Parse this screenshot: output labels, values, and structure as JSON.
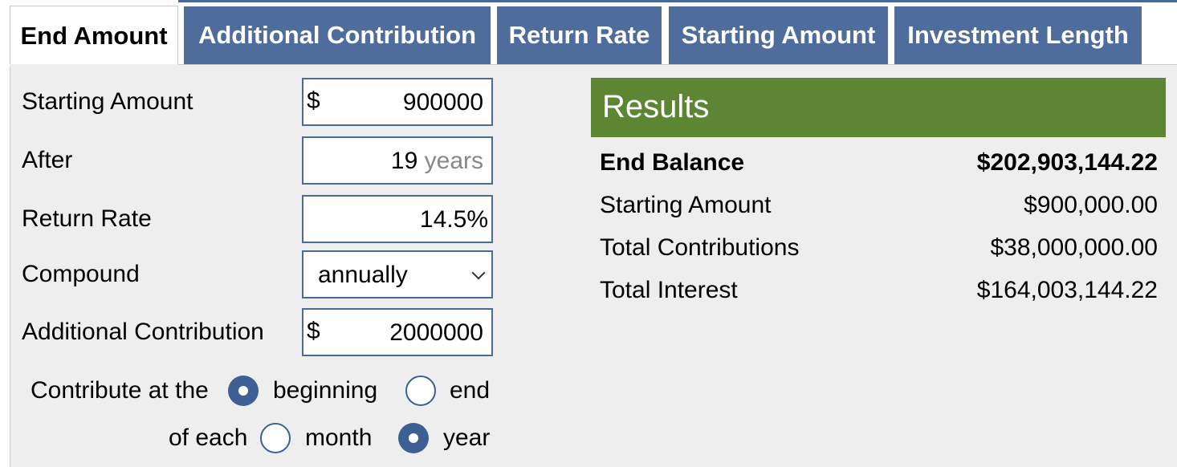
{
  "tabs": [
    {
      "label": "End Amount",
      "active": true
    },
    {
      "label": "Additional Contribution",
      "active": false
    },
    {
      "label": "Return Rate",
      "active": false
    },
    {
      "label": "Starting Amount",
      "active": false
    },
    {
      "label": "Investment Length",
      "active": false
    }
  ],
  "form": {
    "starting_amount": {
      "label": "Starting Amount",
      "prefix": "$",
      "value": "900000"
    },
    "after": {
      "label": "After",
      "value": "19",
      "unit": "years"
    },
    "return_rate": {
      "label": "Return Rate",
      "value": "14.5",
      "unit": "%"
    },
    "compound": {
      "label": "Compound",
      "value": "annually"
    },
    "additional_contribution": {
      "label": "Additional Contribution",
      "prefix": "$",
      "value": "2000000"
    },
    "contribute_at": {
      "label": "Contribute at the",
      "options": [
        "beginning",
        "end"
      ],
      "selected": "beginning"
    },
    "of_each": {
      "label": "of each",
      "options": [
        "month",
        "year"
      ],
      "selected": "year"
    }
  },
  "results": {
    "title": "Results",
    "rows": [
      {
        "label": "End Balance",
        "value": "$202,903,144.22"
      },
      {
        "label": "Starting Amount",
        "value": "$900,000.00"
      },
      {
        "label": "Total Contributions",
        "value": "$38,000,000.00"
      },
      {
        "label": "Total Interest",
        "value": "$164,003,144.22"
      }
    ]
  },
  "colors": {
    "tab_inactive": "#4e6d9d",
    "results_header": "#5c8534",
    "panel": "#eeeeee",
    "field_border": "#4b6a9a"
  }
}
